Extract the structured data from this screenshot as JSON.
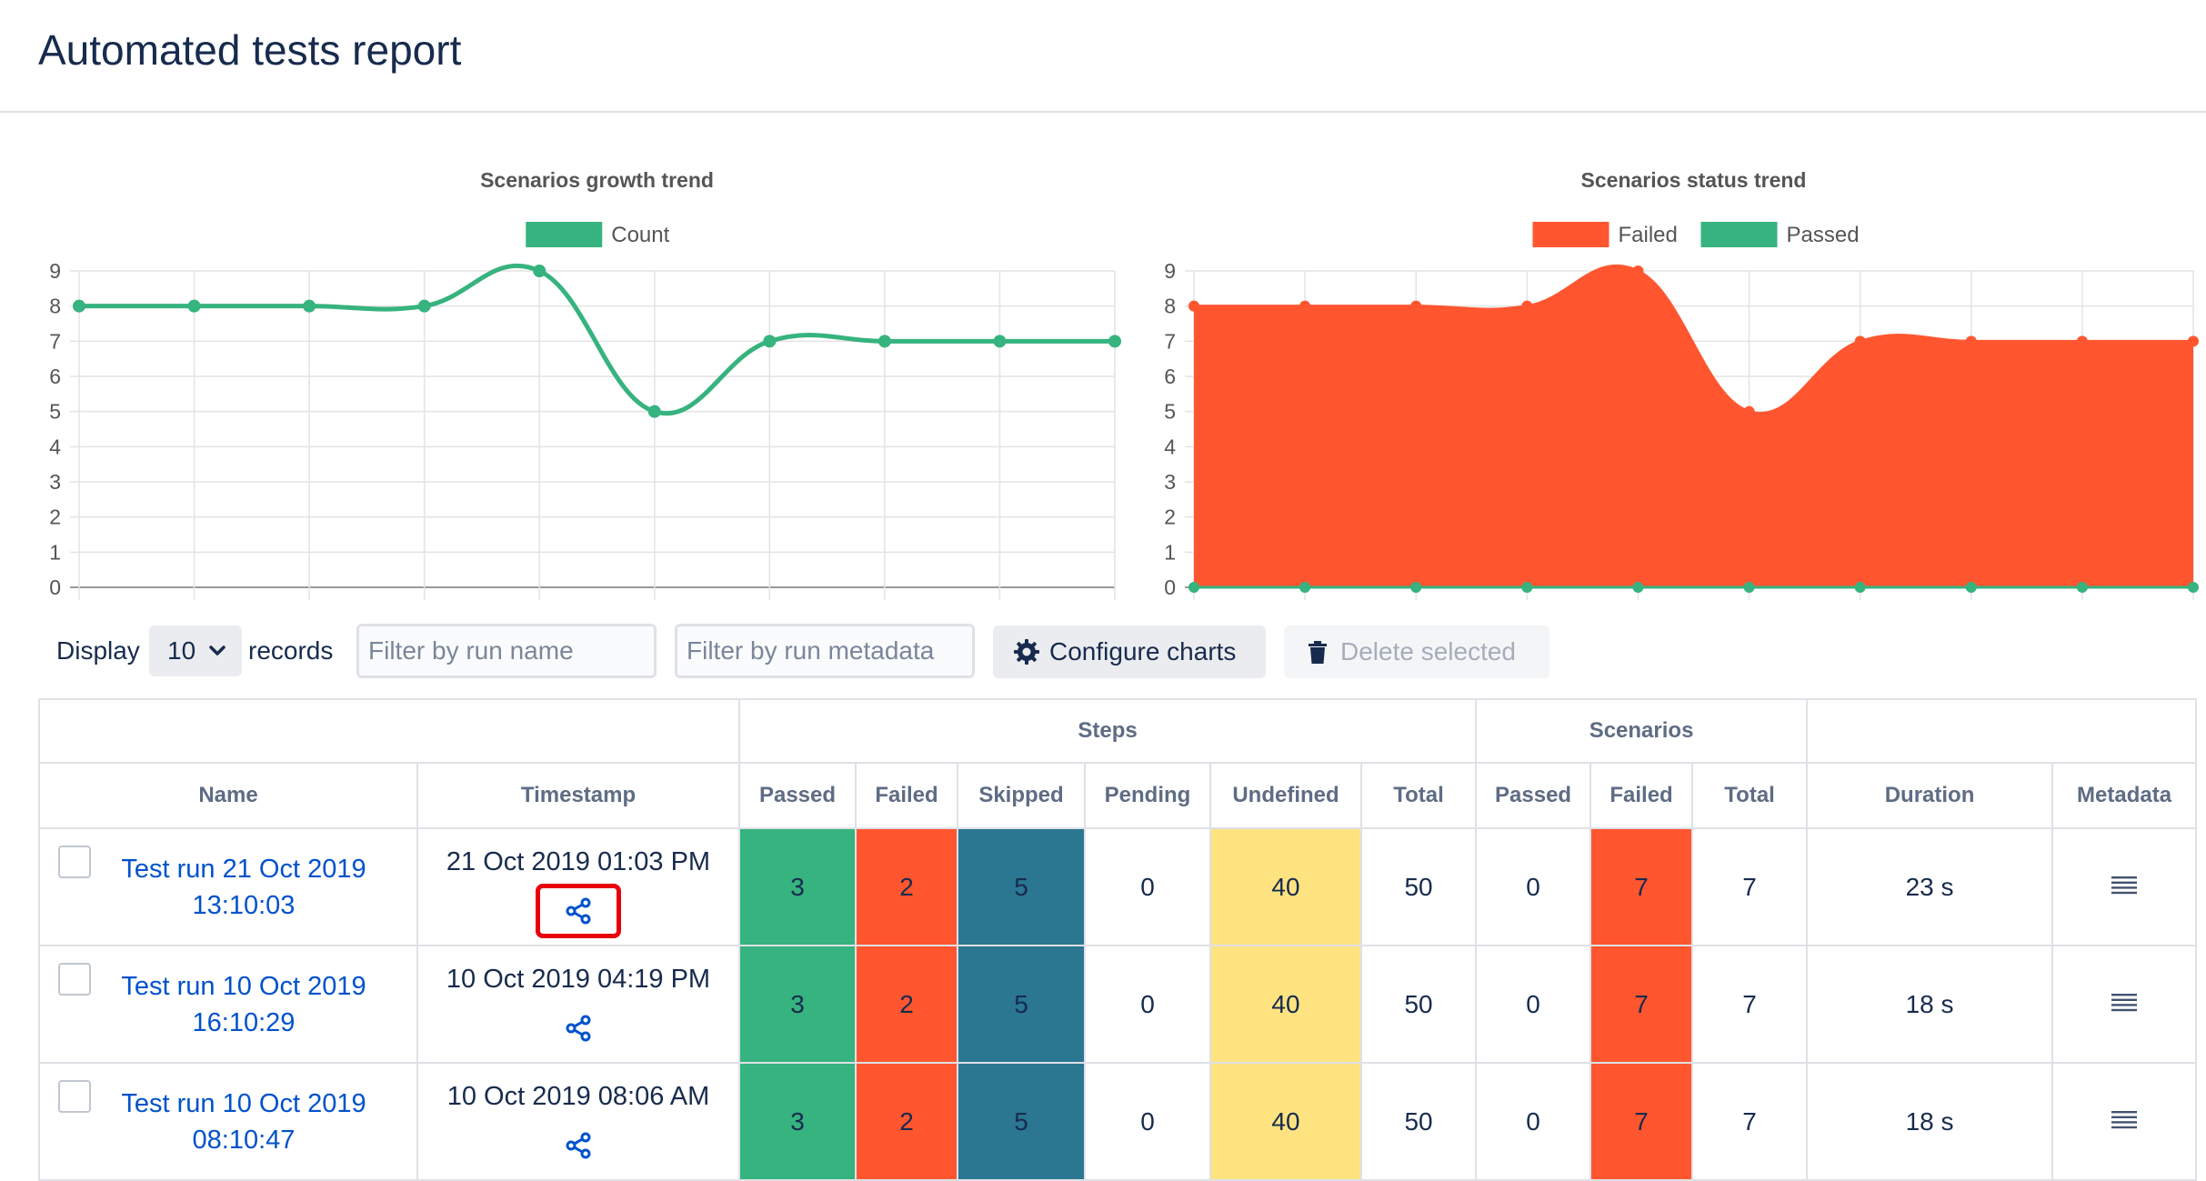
{
  "page": {
    "title": "Automated tests report"
  },
  "chart_data": [
    {
      "type": "line",
      "title": "Scenarios growth trend",
      "x": [
        1,
        2,
        3,
        4,
        5,
        6,
        7,
        8,
        9,
        10
      ],
      "series": [
        {
          "name": "Count",
          "values": [
            8,
            8,
            8,
            8,
            9,
            5,
            7,
            7,
            7,
            7
          ],
          "color": "#36b37e"
        }
      ],
      "ylim": [
        0,
        9
      ],
      "yticks": [
        "0",
        "1",
        "2",
        "3",
        "4",
        "5",
        "6",
        "7",
        "8",
        "9"
      ],
      "legend_position": "top",
      "grid": true
    },
    {
      "type": "area",
      "title": "Scenarios status trend",
      "x": [
        1,
        2,
        3,
        4,
        5,
        6,
        7,
        8,
        9,
        10
      ],
      "series": [
        {
          "name": "Failed",
          "values": [
            8,
            8,
            8,
            8,
            9,
            5,
            7,
            7,
            7,
            7
          ],
          "color": "#ff5630"
        },
        {
          "name": "Passed",
          "values": [
            0,
            0,
            0,
            0,
            0,
            0,
            0,
            0,
            0,
            0
          ],
          "color": "#36b37e"
        }
      ],
      "ylim": [
        0,
        9
      ],
      "yticks": [
        "0",
        "1",
        "2",
        "3",
        "4",
        "5",
        "6",
        "7",
        "8",
        "9"
      ],
      "legend_position": "top",
      "grid": true
    }
  ],
  "controls": {
    "display_label": "Display",
    "page_size": "10",
    "records_label": "records",
    "filter_name_placeholder": "Filter by run name",
    "filter_meta_placeholder": "Filter by run metadata",
    "configure_label": "Configure charts",
    "delete_label": "Delete selected"
  },
  "table": {
    "group_headers": {
      "steps": "Steps",
      "scenarios": "Scenarios"
    },
    "columns": {
      "name": "Name",
      "timestamp": "Timestamp",
      "steps_passed": "Passed",
      "steps_failed": "Failed",
      "steps_skipped": "Skipped",
      "steps_pending": "Pending",
      "steps_undefined": "Undefined",
      "steps_total": "Total",
      "sc_passed": "Passed",
      "sc_failed": "Failed",
      "sc_total": "Total",
      "duration": "Duration",
      "metadata": "Metadata"
    },
    "rows": [
      {
        "name": "Test run 21 Oct 2019 13:10:03",
        "timestamp": "21 Oct 2019 01:03 PM",
        "steps_passed": "3",
        "steps_failed": "2",
        "steps_skipped": "5",
        "steps_pending": "0",
        "steps_undefined": "40",
        "steps_total": "50",
        "sc_passed": "0",
        "sc_failed": "7",
        "sc_total": "7",
        "duration": "23 s"
      },
      {
        "name": "Test run 10 Oct 2019 16:10:29",
        "timestamp": "10 Oct 2019 04:19 PM",
        "steps_passed": "3",
        "steps_failed": "2",
        "steps_skipped": "5",
        "steps_pending": "0",
        "steps_undefined": "40",
        "steps_total": "50",
        "sc_passed": "0",
        "sc_failed": "7",
        "sc_total": "7",
        "duration": "18 s"
      },
      {
        "name": "Test run 10 Oct 2019 08:10:47",
        "timestamp": "10 Oct 2019 08:06 AM",
        "steps_passed": "3",
        "steps_failed": "2",
        "steps_skipped": "5",
        "steps_pending": "0",
        "steps_undefined": "40",
        "steps_total": "50",
        "sc_passed": "0",
        "sc_failed": "7",
        "sc_total": "7",
        "duration": "18 s"
      }
    ]
  }
}
